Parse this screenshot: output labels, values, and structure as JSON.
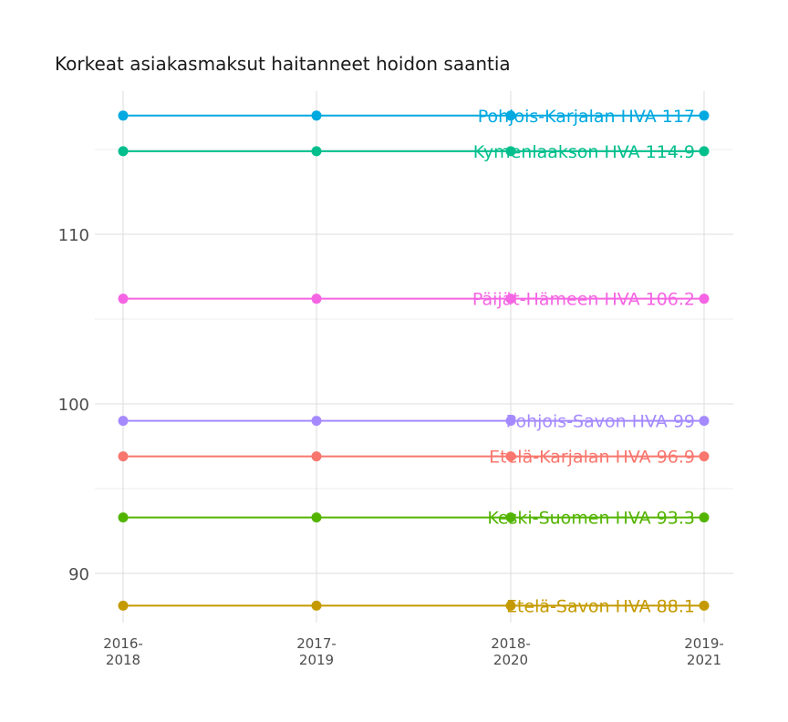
{
  "chart_data": {
    "type": "line",
    "title": "Korkeat asiakasmaksut haitanneet hoidon saantia",
    "xlabel": "",
    "ylabel": "",
    "categories": [
      "2016-2018",
      "2017-2019",
      "2018-2020",
      "2019-2021"
    ],
    "x_tick_lines": [
      [
        "2016-",
        "2018"
      ],
      [
        "2017-",
        "2019"
      ],
      [
        "2018-",
        "2020"
      ],
      [
        "2019-",
        "2021"
      ]
    ],
    "y_ticks": [
      90,
      100,
      110
    ],
    "ylim": [
      87,
      118.5
    ],
    "grid": true,
    "legend": "none",
    "series": [
      {
        "name": "Pohjois-Karjalan HVA",
        "values": [
          117,
          117,
          117,
          117
        ],
        "label": "Pohjois-Karjalan HVA 117",
        "color": "#00a9e0"
      },
      {
        "name": "Kymenlaakson HVA",
        "values": [
          114.9,
          114.9,
          114.9,
          114.9
        ],
        "label": "Kymenlaakson HVA 114.9",
        "color": "#00bf8c"
      },
      {
        "name": "Päijät-Hämeen HVA",
        "values": [
          106.2,
          106.2,
          106.2,
          106.2
        ],
        "label": "Päijät-Hämeen HVA 106.2",
        "color": "#f564e3"
      },
      {
        "name": "Pohjois-Savon HVA",
        "values": [
          99,
          99,
          99,
          99
        ],
        "label": "Pohjois-Savon HVA 99",
        "color": "#a58aff"
      },
      {
        "name": "Etelä-Karjalan HVA",
        "values": [
          96.9,
          96.9,
          96.9,
          96.9
        ],
        "label": "Etelä-Karjalan HVA 96.9",
        "color": "#f8766d"
      },
      {
        "name": "Keski-Suomen HVA",
        "values": [
          93.3,
          93.3,
          93.3,
          93.3
        ],
        "label": "Keski-Suomen HVA 93.3",
        "color": "#53b400"
      },
      {
        "name": "Etelä-Savon HVA",
        "values": [
          88.1,
          88.1,
          88.1,
          88.1
        ],
        "label": "Etelä-Savon HVA 88.1",
        "color": "#c49a00"
      }
    ]
  }
}
